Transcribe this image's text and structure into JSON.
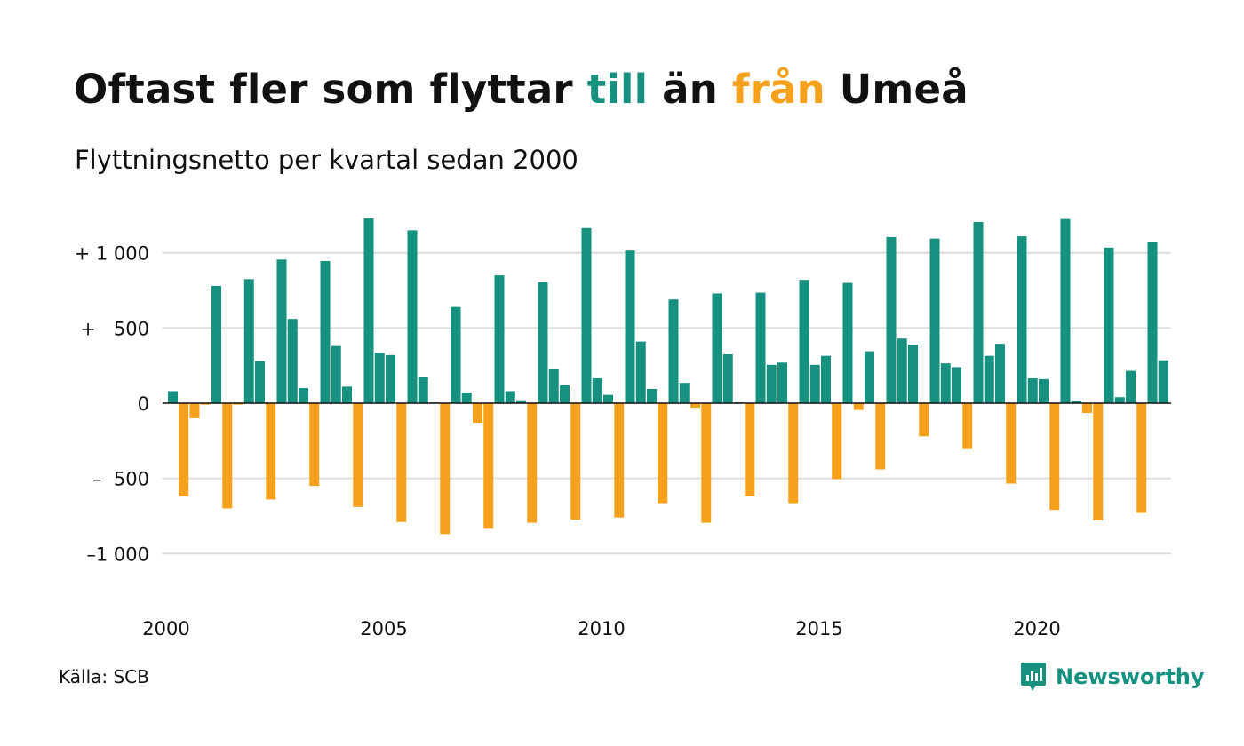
{
  "title": {
    "part1": "Oftast fler som flyttar ",
    "highlight_in": "till",
    "part2": " än ",
    "highlight_out": "från",
    "part3": " Umeå"
  },
  "subtitle": "Flyttningsnetto per kvartal sedan 2000",
  "source": "Källa: SCB",
  "brand": {
    "name": "Newsworthy",
    "icon": "newsworthy-logo-icon"
  },
  "colors": {
    "positive": "#16917f",
    "negative": "#f5a11c",
    "grid": "#dcdcdc",
    "axis": "#111111"
  },
  "chart_data": {
    "type": "bar",
    "title": "",
    "xlabel": "",
    "ylabel": "",
    "ylim": [
      -1300,
      1300
    ],
    "y_ticks": [
      {
        "value": 1000,
        "label": "+ 1 000"
      },
      {
        "value": 500,
        "label": "+   500"
      },
      {
        "value": 0,
        "label": "0"
      },
      {
        "value": -500,
        "label": "–  500"
      },
      {
        "value": -1000,
        "label": "–1 000"
      }
    ],
    "x_ticks": [
      {
        "value": 2000,
        "label": "2000"
      },
      {
        "value": 2005,
        "label": "2005"
      },
      {
        "value": 2010,
        "label": "2010"
      },
      {
        "value": 2015,
        "label": "2015"
      },
      {
        "value": 2020,
        "label": "2020"
      }
    ],
    "grid": true,
    "legend": "none",
    "x_start": "2000 Q1",
    "values": [
      80,
      -620,
      -100,
      -10,
      780,
      -700,
      -10,
      825,
      280,
      -640,
      955,
      560,
      100,
      -550,
      945,
      380,
      110,
      -690,
      1230,
      335,
      320,
      -790,
      1150,
      175,
      5,
      -870,
      640,
      70,
      -130,
      -835,
      850,
      80,
      20,
      -795,
      805,
      225,
      120,
      -775,
      1165,
      165,
      55,
      -760,
      1015,
      410,
      95,
      -665,
      690,
      135,
      -30,
      -795,
      730,
      325,
      5,
      -620,
      735,
      255,
      270,
      -665,
      820,
      255,
      315,
      -505,
      800,
      -45,
      345,
      -440,
      1105,
      430,
      390,
      -220,
      1095,
      265,
      240,
      -305,
      1205,
      315,
      395,
      -535,
      1110,
      165,
      160,
      -710,
      1225,
      15,
      -65,
      -780,
      1035,
      40,
      215,
      -730,
      1075,
      285
    ]
  }
}
